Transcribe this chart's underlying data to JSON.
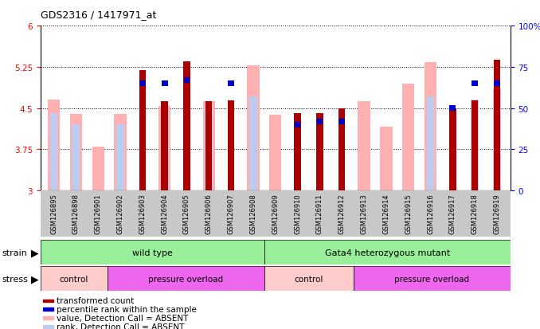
{
  "title": "GDS2316 / 1417971_at",
  "samples": [
    "GSM126895",
    "GSM126898",
    "GSM126901",
    "GSM126902",
    "GSM126903",
    "GSM126904",
    "GSM126905",
    "GSM126906",
    "GSM126907",
    "GSM126908",
    "GSM126909",
    "GSM126910",
    "GSM126911",
    "GSM126912",
    "GSM126913",
    "GSM126914",
    "GSM126915",
    "GSM126916",
    "GSM126917",
    "GSM126918",
    "GSM126919"
  ],
  "transformed_count": [
    null,
    null,
    null,
    null,
    5.19,
    4.62,
    5.35,
    4.62,
    4.64,
    null,
    null,
    4.41,
    4.41,
    4.5,
    null,
    null,
    null,
    null,
    4.48,
    4.64,
    5.38
  ],
  "percentile_rank": [
    null,
    null,
    null,
    null,
    65,
    65,
    67,
    null,
    65,
    null,
    null,
    40,
    42,
    42,
    null,
    null,
    null,
    null,
    50,
    65,
    65
  ],
  "value_absent": [
    4.65,
    4.4,
    3.8,
    4.4,
    null,
    4.54,
    null,
    4.62,
    null,
    5.28,
    4.38,
    null,
    null,
    null,
    4.62,
    4.16,
    4.95,
    5.33,
    null,
    null,
    null
  ],
  "rank_absent_pct": [
    47,
    40,
    null,
    40,
    null,
    50,
    null,
    50,
    null,
    57,
    null,
    null,
    43,
    null,
    null,
    null,
    null,
    57,
    null,
    55,
    62
  ],
  "ylim_left": [
    3,
    6
  ],
  "ylim_right": [
    0,
    100
  ],
  "yticks_left": [
    3,
    3.75,
    4.5,
    5.25,
    6
  ],
  "yticks_right": [
    0,
    25,
    50,
    75,
    100
  ],
  "dark_red": "#AA0000",
  "pink": "#FFB0B0",
  "blue": "#0000CC",
  "light_blue": "#BBCCEE",
  "green": "#99EE99",
  "magenta": "#EE66EE",
  "light_pink_stress": "#FFCCCC",
  "legend_items": [
    {
      "label": "transformed count",
      "color": "#AA0000"
    },
    {
      "label": "percentile rank within the sample",
      "color": "#0000CC"
    },
    {
      "label": "value, Detection Call = ABSENT",
      "color": "#FFB0B0"
    },
    {
      "label": "rank, Detection Call = ABSENT",
      "color": "#BBCCEE"
    }
  ],
  "wild_type_range": [
    0,
    10
  ],
  "gata4_range": [
    10,
    21
  ],
  "control1_range": [
    0,
    3
  ],
  "pressure1_range": [
    3,
    10
  ],
  "control2_range": [
    10,
    14
  ],
  "pressure2_range": [
    14,
    21
  ]
}
